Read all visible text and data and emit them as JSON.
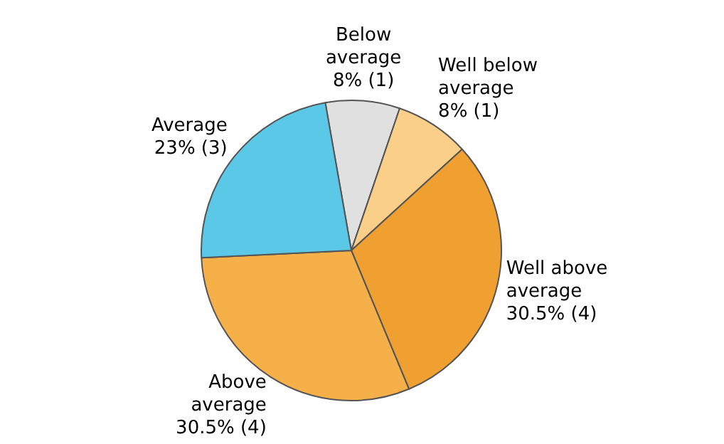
{
  "chart_data": {
    "type": "pie",
    "categories": [
      "Below average",
      "Well below average",
      "Well above average",
      "Above average",
      "Average"
    ],
    "values": [
      8,
      8,
      30.5,
      30.5,
      23
    ],
    "value_labels": [
      "8% (1)",
      "8% (1)",
      "30.5% (4)",
      "30.5% (4)",
      "23% (3)"
    ],
    "colors": [
      "#e0e0e0",
      "#f9cf8a",
      "#f0a030",
      "#f5b04a",
      "#5cc8e8"
    ],
    "legend": false
  }
}
